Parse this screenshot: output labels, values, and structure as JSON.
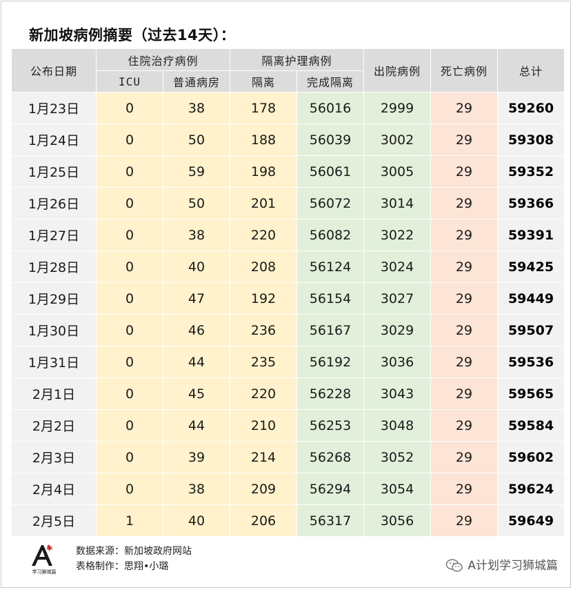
{
  "title": "新加坡病例摘要（过去14天）：",
  "headers": {
    "date": "公布日期",
    "hospital_group": "住院治疗病例",
    "icu": "ICU",
    "general_ward": "普通病房",
    "isolation_group": "隔离护理病例",
    "isolation": "隔离",
    "completed_isolation": "完成隔离",
    "discharged": "出院病例",
    "deaths": "死亡病例",
    "total": "总计"
  },
  "rows": [
    {
      "date": "1月23日",
      "icu": "0",
      "ward": "38",
      "iso": "178",
      "done": "56016",
      "dis": "2999",
      "dead": "29",
      "total": "59260"
    },
    {
      "date": "1月24日",
      "icu": "0",
      "ward": "50",
      "iso": "188",
      "done": "56039",
      "dis": "3002",
      "dead": "29",
      "total": "59308"
    },
    {
      "date": "1月25日",
      "icu": "0",
      "ward": "59",
      "iso": "198",
      "done": "56061",
      "dis": "3005",
      "dead": "29",
      "total": "59352"
    },
    {
      "date": "1月26日",
      "icu": "0",
      "ward": "50",
      "iso": "201",
      "done": "56072",
      "dis": "3014",
      "dead": "29",
      "total": "59366"
    },
    {
      "date": "1月27日",
      "icu": "0",
      "ward": "38",
      "iso": "220",
      "done": "56082",
      "dis": "3022",
      "dead": "29",
      "total": "59391"
    },
    {
      "date": "1月28日",
      "icu": "0",
      "ward": "40",
      "iso": "208",
      "done": "56124",
      "dis": "3024",
      "dead": "29",
      "total": "59425"
    },
    {
      "date": "1月29日",
      "icu": "0",
      "ward": "47",
      "iso": "192",
      "done": "56154",
      "dis": "3027",
      "dead": "29",
      "total": "59449"
    },
    {
      "date": "1月30日",
      "icu": "0",
      "ward": "46",
      "iso": "236",
      "done": "56167",
      "dis": "3029",
      "dead": "29",
      "total": "59507"
    },
    {
      "date": "1月31日",
      "icu": "0",
      "ward": "44",
      "iso": "235",
      "done": "56192",
      "dis": "3036",
      "dead": "29",
      "total": "59536"
    },
    {
      "date": "2月1日",
      "icu": "0",
      "ward": "45",
      "iso": "220",
      "done": "56228",
      "dis": "3043",
      "dead": "29",
      "total": "59565"
    },
    {
      "date": "2月2日",
      "icu": "0",
      "ward": "44",
      "iso": "210",
      "done": "56253",
      "dis": "3048",
      "dead": "29",
      "total": "59584"
    },
    {
      "date": "2月3日",
      "icu": "0",
      "ward": "39",
      "iso": "214",
      "done": "56268",
      "dis": "3052",
      "dead": "29",
      "total": "59602"
    },
    {
      "date": "2月4日",
      "icu": "0",
      "ward": "38",
      "iso": "209",
      "done": "56294",
      "dis": "3054",
      "dead": "29",
      "total": "59624"
    },
    {
      "date": "2月5日",
      "icu": "1",
      "ward": "40",
      "iso": "206",
      "done": "56317",
      "dis": "3056",
      "dead": "29",
      "total": "59649"
    }
  ],
  "footer": {
    "source": "数据来源：新加坡政府网站",
    "made_by": "表格制作：思翔•小璐",
    "logo_text": "学习狮城篇",
    "wechat_account": "A计划学习狮城篇"
  },
  "colors": {
    "header_bg": "#dcdcdc",
    "date_bg": "#f2f2f2",
    "hospital_bg": "#fff2cc",
    "isolation_bg": "#e2efda",
    "deaths_bg": "#fce4d6",
    "total_bg": "#f2f2f2"
  },
  "icons": {
    "logo": "letter-a-logo-icon",
    "wechat": "wechat-icon"
  }
}
